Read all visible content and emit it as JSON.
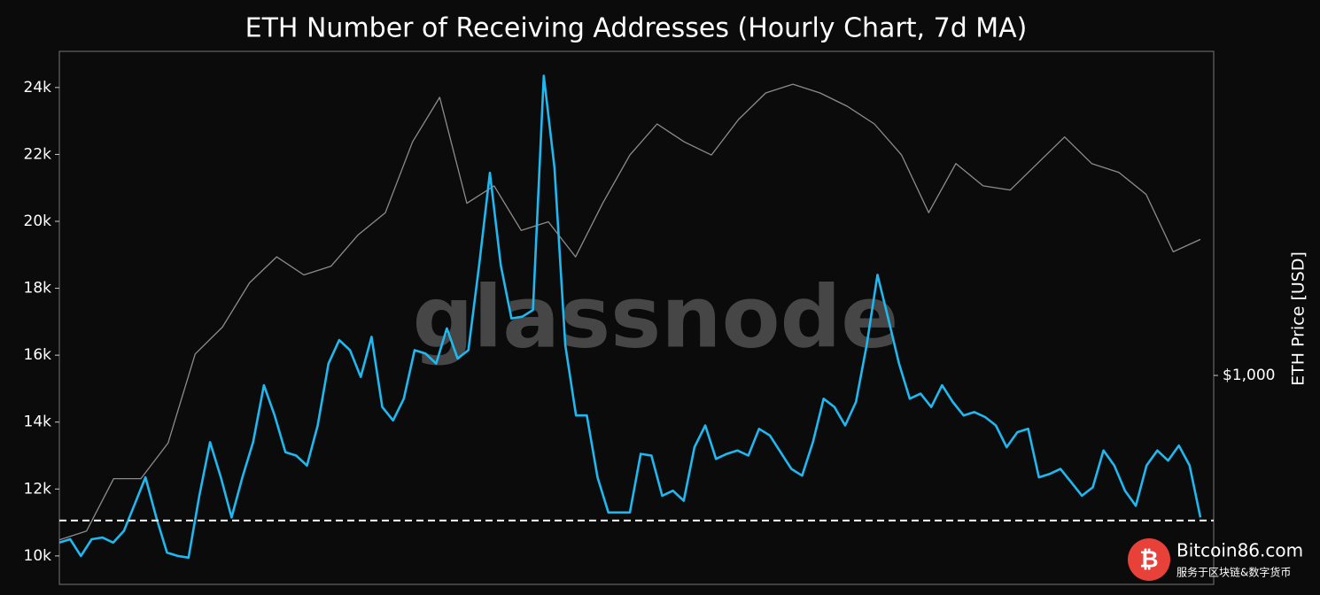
{
  "chart_data": {
    "type": "line",
    "title": "ETH Number of Receiving Addresses (Hourly Chart, 7d MA)",
    "y2label": "ETH Price [USD]",
    "watermark": "glassnode",
    "ylim": [
      9150,
      25080
    ],
    "yticks": [
      {
        "value": 10000,
        "label": "10k"
      },
      {
        "value": 12000,
        "label": "12k"
      },
      {
        "value": 14000,
        "label": "14k"
      },
      {
        "value": 16000,
        "label": "16k"
      },
      {
        "value": 18000,
        "label": "18k"
      },
      {
        "value": 20000,
        "label": "20k"
      },
      {
        "value": 22000,
        "label": "22k"
      },
      {
        "value": 24000,
        "label": "24k"
      }
    ],
    "y2lim": [
      332,
      5530
    ],
    "y2scale": "log",
    "y2ticks": [
      {
        "value": 1000,
        "label": "$1,000"
      }
    ],
    "reference_line": 11060,
    "series": [
      {
        "name": "Receiving Addresses",
        "color": "#1fb8f0",
        "values": [
          10400,
          10500,
          10000,
          10500,
          10550,
          10400,
          10750,
          11550,
          12350,
          11150,
          10100,
          10000,
          9950,
          11800,
          13400,
          12350,
          11150,
          12350,
          13400,
          15100,
          14200,
          13100,
          13000,
          12700,
          13900,
          15750,
          16450,
          16150,
          15350,
          16550,
          14450,
          14050,
          14700,
          16150,
          16050,
          15750,
          16800,
          15900,
          16150,
          18700,
          21450,
          18700,
          17100,
          17150,
          17350,
          24350,
          21600,
          16300,
          14200,
          14200,
          12350,
          11300,
          11300,
          11300,
          13050,
          13000,
          11800,
          11950,
          11650,
          13250,
          13900,
          12900,
          13050,
          13150,
          13000,
          13800,
          13600,
          13100,
          12600,
          12400,
          13400,
          14700,
          14450,
          13900,
          14600,
          16300,
          18400,
          17100,
          15750,
          14700,
          14850,
          14450,
          15100,
          14600,
          14200,
          14300,
          14150,
          13900,
          13250,
          13700,
          13800,
          12350,
          12450,
          12600,
          12200,
          11800,
          12050,
          13150,
          12700,
          11950,
          11500,
          12700,
          13150,
          12850,
          13300,
          12700,
          11150
        ]
      },
      {
        "name": "ETH Price",
        "color": "#8c8c8c",
        "axis": "y2",
        "values": [
          420,
          440,
          580,
          580,
          700,
          1120,
          1290,
          1630,
          1870,
          1700,
          1780,
          2100,
          2360,
          3430,
          4340,
          2480,
          2720,
          2150,
          2250,
          1870,
          2480,
          3200,
          3770,
          3430,
          3200,
          3860,
          4440,
          4650,
          4440,
          4140,
          3770,
          3200,
          2360,
          3060,
          2720,
          2660,
          3060,
          3520,
          3060,
          2920,
          2600,
          1920,
          2050
        ]
      }
    ],
    "source": {
      "name": "Bitcoin86.com",
      "tagline": "服务于区块链&数字货币"
    }
  }
}
